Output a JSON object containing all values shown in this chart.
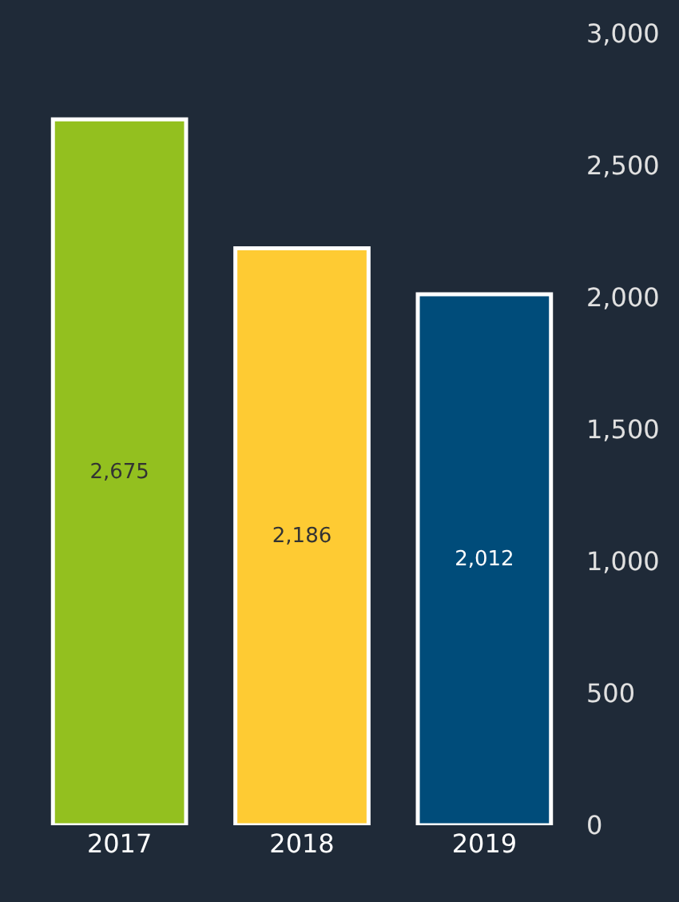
{
  "chart_data": {
    "type": "bar",
    "categories": [
      "2017",
      "2018",
      "2019"
    ],
    "values": [
      2675,
      2186,
      2012
    ],
    "colors": [
      "#93c01f",
      "#fecb33",
      "#004c7a"
    ],
    "ylim": [
      0,
      3000
    ],
    "yticks": [
      {
        "value": 0,
        "label": "0"
      },
      {
        "value": 500,
        "label": "500"
      },
      {
        "value": 1000,
        "label": "1,000"
      },
      {
        "value": 1500,
        "label": "1,500"
      },
      {
        "value": 2000,
        "label": "2,000"
      },
      {
        "value": 2500,
        "label": "2,500"
      },
      {
        "value": 3000,
        "label": "3,000"
      }
    ],
    "value_labels": [
      "2,675",
      "2,186",
      "2,012"
    ],
    "grid": false,
    "legend": false
  }
}
